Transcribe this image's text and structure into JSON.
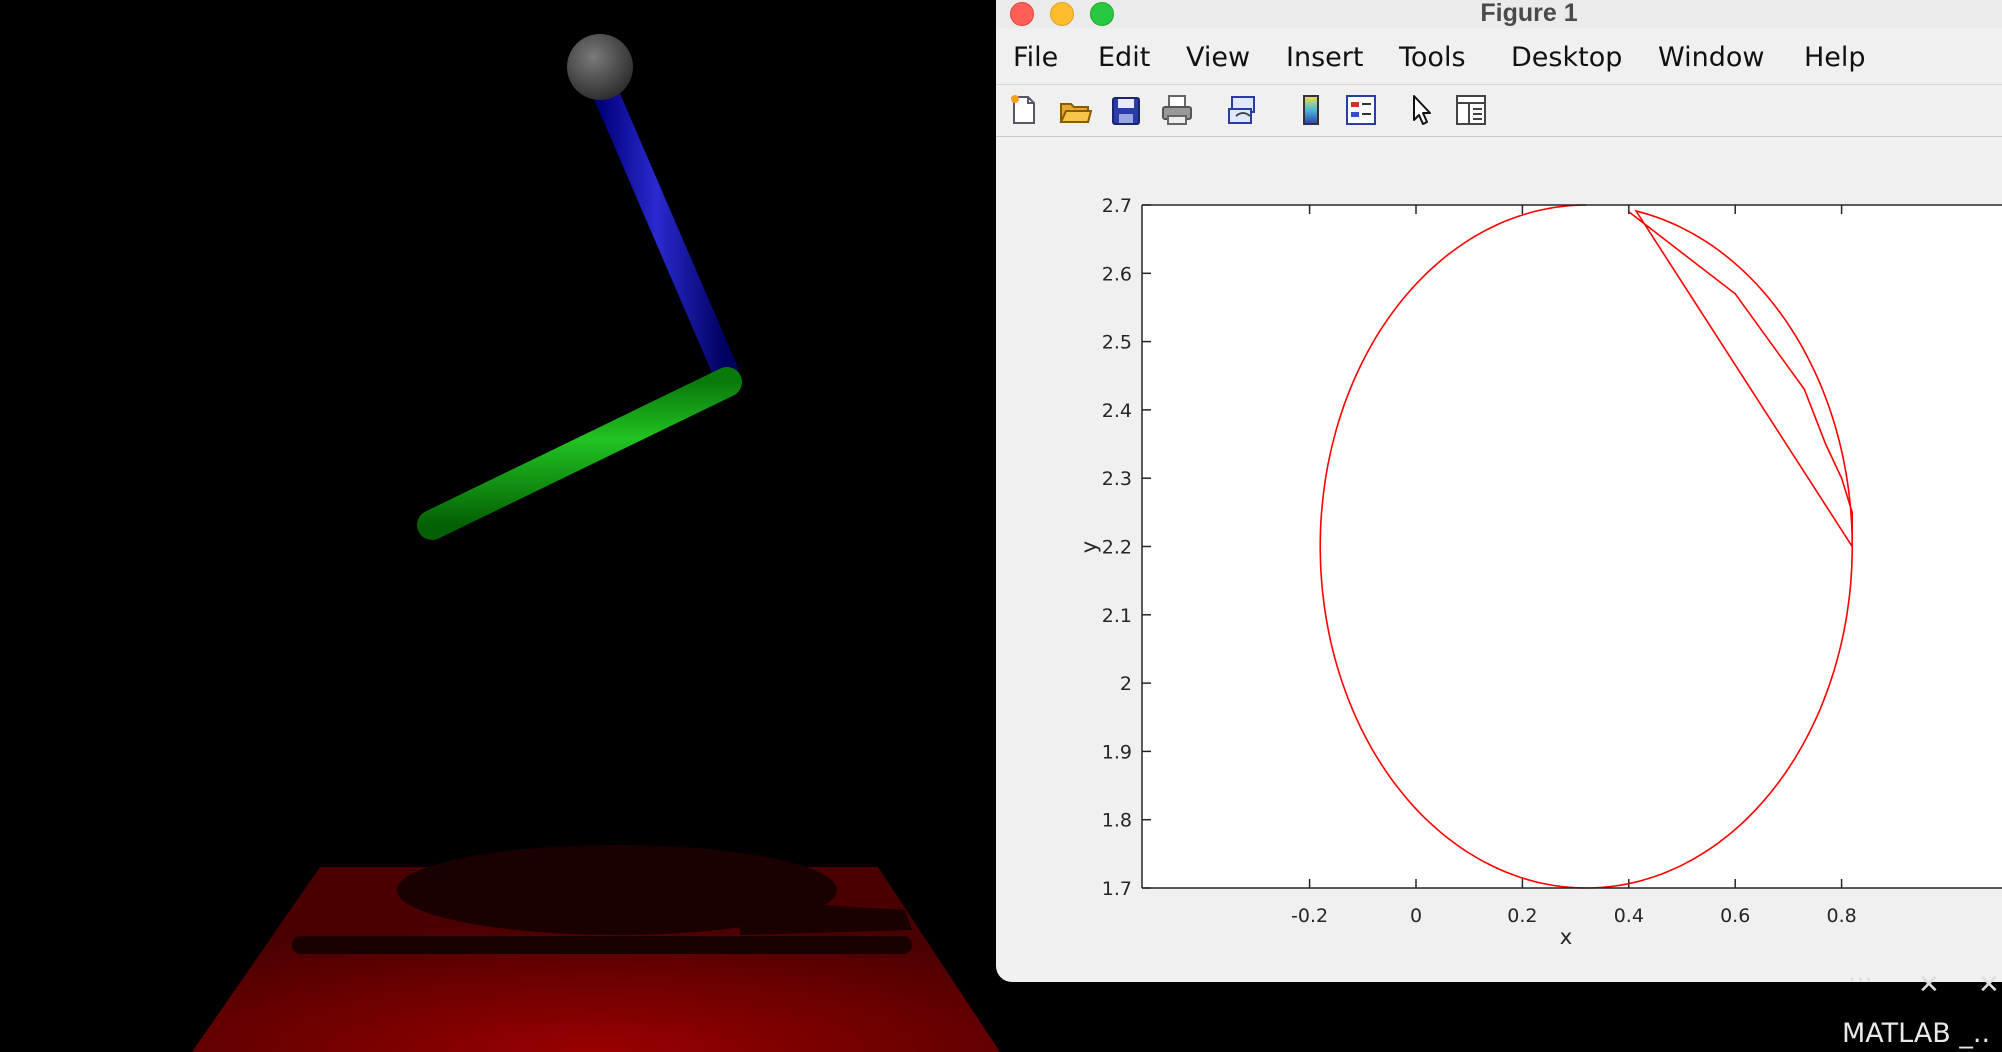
{
  "window": {
    "title": "Figure 1"
  },
  "menu": {
    "items": [
      "File",
      "Edit",
      "View",
      "Insert",
      "Tools",
      "Desktop",
      "Window",
      "Help"
    ]
  },
  "toolbar": {
    "icons": [
      "new-figure-icon",
      "open-file-icon",
      "save-icon",
      "print-icon",
      "link-plot-icon",
      "colorbar-icon",
      "legend-icon",
      "edit-plot-cursor-icon",
      "property-inspector-icon"
    ]
  },
  "chart_data": {
    "type": "line",
    "xlabel": "x",
    "ylabel": "y",
    "xlim": [
      -0.3,
      0.95
    ],
    "ylim": [
      1.7,
      2.7
    ],
    "x_ticks": [
      "-0.2",
      "0",
      "0.2",
      "0.4",
      "0.6",
      "0.8"
    ],
    "y_ticks": [
      "1.7",
      "1.8",
      "1.9",
      "2",
      "2.1",
      "2.2",
      "2.3",
      "2.4",
      "2.5",
      "2.6",
      "2.7"
    ],
    "series": [
      {
        "color": "#ff0000",
        "shape": "circle",
        "center": [
          0.32,
          2.2
        ],
        "radius": 0.5,
        "x": [
          0.82,
          0.82,
          0.8,
          0.77,
          0.73,
          0.6,
          0.4
        ],
        "y": [
          2.2,
          2.25,
          2.3,
          2.35,
          2.43,
          2.57,
          2.69
        ]
      }
    ]
  },
  "scene": {
    "colors": {
      "background": "#000000",
      "ball": "#555555",
      "upper_link": "#0000a0",
      "lower_link": "#00a000",
      "floor": "#8a0000"
    }
  },
  "taskbar": {
    "matlab_label": "MATLAB _..",
    "controls": [
      "...",
      "✕",
      "✕"
    ]
  }
}
